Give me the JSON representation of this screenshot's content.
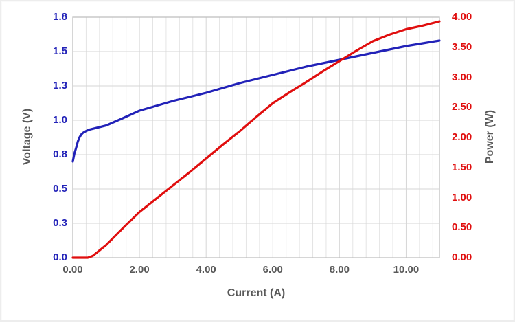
{
  "chart_data": {
    "type": "line",
    "title": "",
    "xlabel": "Current (A)",
    "ylabel_left": "Voltage (V)",
    "ylabel_right": "Power (W)",
    "x_axis": {
      "min": 0,
      "max": 11,
      "major_unit": 2,
      "minor_unit": 0.4,
      "tick_values": [
        0,
        2,
        4,
        6,
        8,
        10
      ],
      "tick_labels": [
        "0.00",
        "2.00",
        "4.00",
        "6.00",
        "8.00",
        "10.00"
      ]
    },
    "y_axis_left": {
      "min": 0,
      "max": 1.75,
      "major_unit": 0.25,
      "tick_labels_top_to_bottom": [
        "1.8",
        "1.5",
        "1.3",
        "1.0",
        "0.8",
        "0.5",
        "0.3",
        "0.0"
      ],
      "color": "#2222b8"
    },
    "y_axis_right": {
      "min": 0,
      "max": 4,
      "major_unit": 0.5,
      "tick_labels_top_to_bottom": [
        "4.00",
        "3.50",
        "3.00",
        "2.50",
        "2.00",
        "1.50",
        "1.00",
        "0.50",
        "0.00"
      ],
      "color": "#e00e0e"
    },
    "series": [
      {
        "name": "Voltage",
        "axis": "left",
        "color": "#2222b8",
        "points": [
          [
            0,
            0.7
          ],
          [
            0.05,
            0.76
          ],
          [
            0.1,
            0.8
          ],
          [
            0.15,
            0.845
          ],
          [
            0.2,
            0.875
          ],
          [
            0.25,
            0.895
          ],
          [
            0.3,
            0.908
          ],
          [
            0.4,
            0.922
          ],
          [
            0.5,
            0.932
          ],
          [
            0.75,
            0.947
          ],
          [
            1,
            0.962
          ],
          [
            1.5,
            1.015
          ],
          [
            2,
            1.07
          ],
          [
            2.5,
            1.105
          ],
          [
            3,
            1.14
          ],
          [
            3.5,
            1.17
          ],
          [
            4,
            1.2
          ],
          [
            4.5,
            1.235
          ],
          [
            5,
            1.27
          ],
          [
            5.5,
            1.3
          ],
          [
            6,
            1.33
          ],
          [
            6.5,
            1.36
          ],
          [
            7,
            1.39
          ],
          [
            7.5,
            1.415
          ],
          [
            8,
            1.44
          ],
          [
            8.5,
            1.465
          ],
          [
            9,
            1.49
          ],
          [
            9.5,
            1.515
          ],
          [
            10,
            1.54
          ],
          [
            10.5,
            1.56
          ],
          [
            11,
            1.58
          ]
        ]
      },
      {
        "name": "Power",
        "axis": "right",
        "color": "#e00e0e",
        "points": [
          [
            0,
            0
          ],
          [
            0.45,
            0
          ],
          [
            0.6,
            0.03
          ],
          [
            0.8,
            0.12
          ],
          [
            1,
            0.21
          ],
          [
            1.5,
            0.49
          ],
          [
            2,
            0.76
          ],
          [
            2.5,
            0.98
          ],
          [
            3,
            1.2
          ],
          [
            3.5,
            1.42
          ],
          [
            4,
            1.65
          ],
          [
            4.5,
            1.88
          ],
          [
            5,
            2.1
          ],
          [
            5.5,
            2.34
          ],
          [
            6,
            2.57
          ],
          [
            6.5,
            2.75
          ],
          [
            7,
            2.92
          ],
          [
            7.5,
            3.1
          ],
          [
            8,
            3.27
          ],
          [
            8.5,
            3.44
          ],
          [
            9,
            3.6
          ],
          [
            9.5,
            3.71
          ],
          [
            10,
            3.8
          ],
          [
            10.5,
            3.86
          ],
          [
            11,
            3.93
          ]
        ]
      }
    ],
    "grid": {
      "show_horizontal_major": true,
      "show_vertical_major": true,
      "show_vertical_minor": true,
      "minor_color": "#e4e4e4",
      "major_color": "#d6d6d6",
      "axis_color": "#bfbfbf"
    },
    "legend": "none"
  },
  "styles": {
    "background": "#ffffff",
    "text_gray": "#595959",
    "line_width": 3.2
  }
}
